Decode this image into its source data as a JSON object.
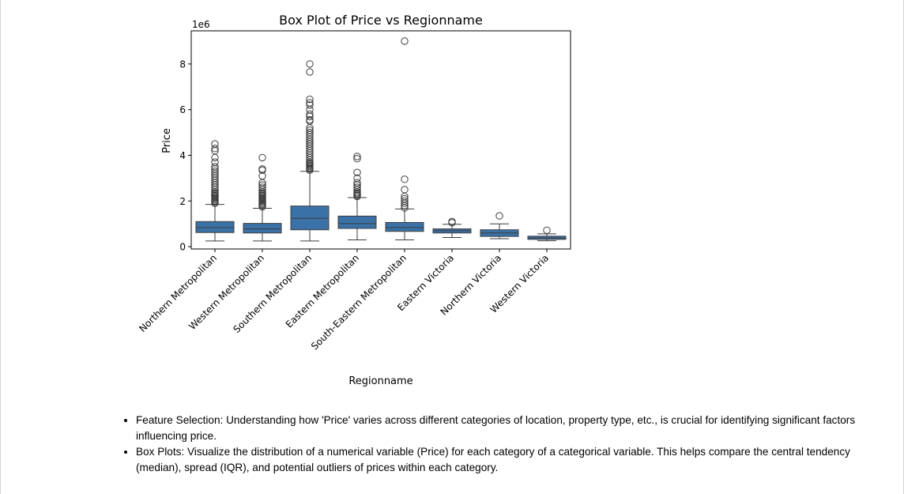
{
  "chart_data": {
    "type": "box",
    "title": "Box Plot of Price vs Regionname",
    "xlabel": "Regionname",
    "ylabel": "Price",
    "y_offset_text": "1e6",
    "ylim": [
      -0.1,
      9.45
    ],
    "y_ticks": [
      0,
      2,
      4,
      6,
      8
    ],
    "y_tick_labels": [
      "0",
      "2",
      "4",
      "6",
      "8"
    ],
    "grid": false,
    "legend": false,
    "box_color": "#3a72a8",
    "categories": [
      "Northern Metropolitan",
      "Western Metropolitan",
      "Southern Metropolitan",
      "Eastern Metropolitan",
      "South-Eastern Metropolitan",
      "Eastern Victoria",
      "Northern Victoria",
      "Western Victoria"
    ],
    "boxes": [
      {
        "whislo": 0.25,
        "q1": 0.62,
        "med": 0.84,
        "q3": 1.1,
        "whishi": 1.85,
        "fliers": [
          1.9,
          1.95,
          2.0,
          2.05,
          2.1,
          2.15,
          2.2,
          2.25,
          2.3,
          2.35,
          2.4,
          2.5,
          2.6,
          2.7,
          2.8,
          2.9,
          3.0,
          3.1,
          3.2,
          3.3,
          3.4,
          3.5,
          3.7,
          3.9,
          4.2,
          4.3,
          4.5
        ]
      },
      {
        "whislo": 0.25,
        "q1": 0.6,
        "med": 0.78,
        "q3": 1.02,
        "whishi": 1.68,
        "fliers": [
          1.75,
          1.8,
          1.85,
          1.9,
          1.95,
          2.0,
          2.05,
          2.1,
          2.15,
          2.2,
          2.25,
          2.3,
          2.35,
          2.4,
          2.5,
          2.6,
          2.7,
          2.8,
          3.1,
          3.35,
          3.4,
          3.9
        ]
      },
      {
        "whislo": 0.25,
        "q1": 0.74,
        "med": 1.24,
        "q3": 1.78,
        "whishi": 3.3,
        "fliers": [
          3.35,
          3.4,
          3.45,
          3.5,
          3.55,
          3.6,
          3.65,
          3.7,
          3.8,
          3.9,
          4.0,
          4.1,
          4.2,
          4.3,
          4.4,
          4.5,
          4.6,
          4.7,
          4.8,
          4.9,
          5.0,
          5.1,
          5.2,
          5.5,
          5.55,
          5.7,
          5.8,
          6.0,
          6.2,
          6.3,
          6.45,
          7.65,
          8.0
        ]
      },
      {
        "whislo": 0.3,
        "q1": 0.8,
        "med": 1.01,
        "q3": 1.34,
        "whishi": 2.15,
        "fliers": [
          2.2,
          2.25,
          2.3,
          2.35,
          2.4,
          2.5,
          2.6,
          2.7,
          2.8,
          3.0,
          3.25,
          3.85,
          3.95
        ]
      },
      {
        "whislo": 0.3,
        "q1": 0.67,
        "med": 0.84,
        "q3": 1.06,
        "whishi": 1.65,
        "fliers": [
          1.7,
          1.8,
          1.9,
          2.0,
          2.1,
          2.2,
          2.5,
          2.95,
          9.0
        ]
      },
      {
        "whislo": 0.4,
        "q1": 0.6,
        "med": 0.7,
        "q3": 0.78,
        "whishi": 0.98,
        "fliers": [
          1.05,
          1.1
        ]
      },
      {
        "whislo": 0.35,
        "q1": 0.45,
        "med": 0.6,
        "q3": 0.74,
        "whishi": 1.0,
        "fliers": [
          1.35
        ]
      },
      {
        "whislo": 0.26,
        "q1": 0.32,
        "med": 0.38,
        "q3": 0.46,
        "whishi": 0.56,
        "fliers": [
          0.72
        ]
      }
    ]
  },
  "notes": [
    "Feature Selection: Understanding how 'Price' varies across different categories of location, property type, etc., is crucial for identifying significant factors influencing price.",
    "Box Plots: Visualize the distribution of a numerical variable (Price) for each category of a categorical variable. This helps compare the central tendency (median), spread (IQR), and potential outliers of prices within each category."
  ]
}
